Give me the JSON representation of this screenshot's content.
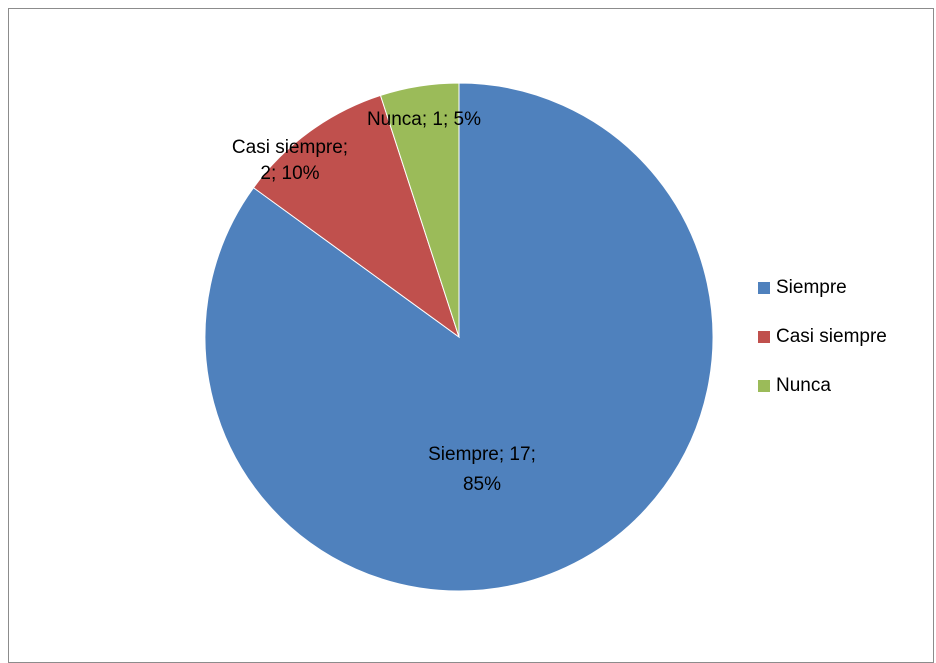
{
  "chart_data": {
    "type": "pie",
    "title": "",
    "categories": [
      "Siempre",
      "Casi siempre",
      "Nunca"
    ],
    "values": [
      17,
      2,
      1
    ],
    "percentages": [
      "85%",
      "10%",
      "5%"
    ],
    "colors": [
      "#4f81bd",
      "#c0504d",
      "#9bbb59"
    ],
    "data_labels": [
      [
        "Siempre; 17;",
        "85%"
      ],
      [
        "Casi siempre;",
        "2; 10%"
      ],
      [
        "Nunca; 1; 5%"
      ]
    ],
    "legend": {
      "position": "right",
      "items": [
        {
          "label": "Siempre",
          "color": "#4f81bd"
        },
        {
          "label": "Casi siempre",
          "color": "#c0504d"
        },
        {
          "label": "Nunca",
          "color": "#9bbb59"
        }
      ]
    }
  }
}
